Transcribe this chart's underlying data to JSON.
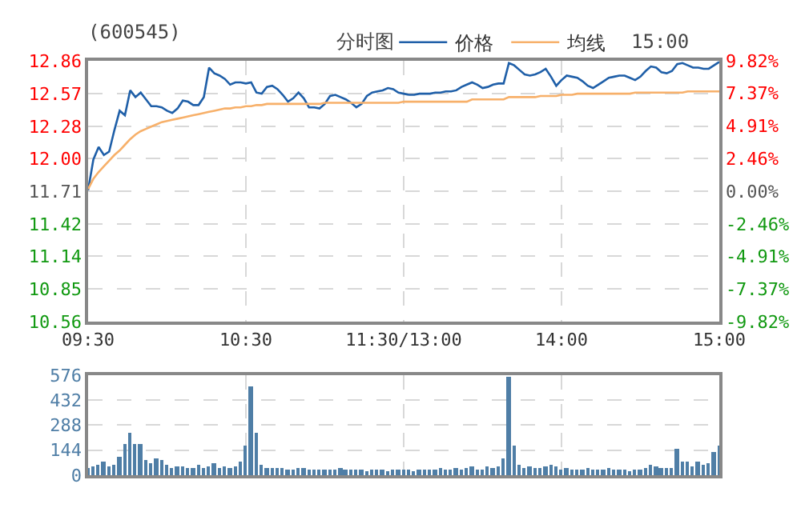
{
  "chart_data": [
    {
      "type": "line",
      "title": "(600545)",
      "annotations": [
        "分时图",
        "15:00"
      ],
      "legend": "top",
      "grid": true,
      "marker": "none",
      "line_style": "solid",
      "categories": [
        "09:30",
        null,
        null,
        null,
        null,
        null,
        null,
        null,
        null,
        null,
        null,
        null,
        null,
        null,
        null,
        null,
        null,
        null,
        null,
        null,
        null,
        null,
        null,
        null,
        null,
        null,
        null,
        null,
        null,
        null,
        "10:30",
        null,
        null,
        null,
        null,
        null,
        null,
        null,
        null,
        null,
        null,
        null,
        null,
        null,
        null,
        null,
        null,
        null,
        null,
        null,
        null,
        null,
        null,
        null,
        null,
        null,
        null,
        null,
        null,
        null,
        "11:30/13:00",
        null,
        null,
        null,
        null,
        null,
        null,
        null,
        null,
        null,
        null,
        null,
        null,
        null,
        null,
        null,
        null,
        null,
        null,
        null,
        null,
        null,
        null,
        null,
        null,
        null,
        null,
        null,
        null,
        null,
        "14:00",
        null,
        null,
        null,
        null,
        null,
        null,
        null,
        null,
        null,
        null,
        null,
        null,
        null,
        null,
        null,
        null,
        null,
        null,
        null,
        null,
        null,
        null,
        null,
        null,
        null,
        null,
        null,
        null,
        null,
        "15:00"
      ],
      "ylim": [
        10.56,
        12.86
      ],
      "yticks": [
        10.56,
        10.85,
        11.14,
        11.42,
        11.71,
        {
          "value": 12.0,
          "label": "12.00"
        },
        12.28,
        12.57,
        12.86
      ],
      "y2lim": [
        -9.82,
        9.82
      ],
      "y2ticks": [
        {
          "value": -9.82,
          "label": "-9.82%"
        },
        {
          "value": -7.37,
          "label": "-7.37%"
        },
        {
          "value": -4.91,
          "label": "-4.91%"
        },
        {
          "value": -2.46,
          "label": "-2.46%"
        },
        {
          "value": 0,
          "label": "0.00%"
        },
        {
          "value": 2.46,
          "label": "2.46%"
        },
        {
          "value": 4.91,
          "label": "4.91%"
        },
        {
          "value": 7.37,
          "label": "7.37%"
        },
        {
          "value": 9.82,
          "label": "9.82%"
        }
      ],
      "series": [
        {
          "name": "价格",
          "color": "#1f5fa8",
          "values": [
            11.72,
            11.99,
            12.1,
            12.03,
            12.06,
            12.25,
            12.42,
            12.38,
            12.6,
            12.54,
            12.58,
            12.52,
            12.46,
            12.46,
            12.45,
            12.42,
            12.4,
            12.44,
            12.51,
            12.5,
            12.47,
            12.47,
            12.54,
            12.8,
            12.75,
            12.73,
            12.7,
            12.65,
            12.67,
            12.67,
            12.66,
            12.67,
            12.58,
            12.57,
            12.63,
            12.64,
            12.61,
            12.56,
            12.5,
            12.53,
            12.58,
            12.53,
            12.45,
            12.45,
            12.44,
            12.48,
            12.55,
            12.56,
            12.54,
            12.52,
            12.49,
            12.45,
            12.48,
            12.55,
            12.58,
            12.59,
            12.6,
            12.62,
            12.61,
            12.58,
            12.57,
            12.56,
            12.56,
            12.57,
            12.57,
            12.57,
            12.58,
            12.58,
            12.59,
            12.59,
            12.6,
            12.63,
            12.65,
            12.67,
            12.65,
            12.62,
            12.63,
            12.65,
            12.66,
            12.66,
            12.84,
            12.82,
            12.78,
            12.74,
            12.73,
            12.74,
            12.76,
            12.79,
            12.72,
            12.64,
            12.69,
            12.73,
            12.72,
            12.71,
            12.68,
            12.64,
            12.62,
            12.65,
            12.68,
            12.71,
            12.72,
            12.73,
            12.73,
            12.71,
            12.69,
            12.72,
            12.77,
            12.81,
            12.8,
            12.76,
            12.75,
            12.77,
            12.83,
            12.84,
            12.82,
            12.8,
            12.8,
            12.79,
            12.79,
            12.82,
            12.85
          ]
        },
        {
          "name": "均线",
          "color": "#f7b06a",
          "values": [
            11.73,
            11.82,
            11.88,
            11.93,
            11.98,
            12.03,
            12.07,
            12.12,
            12.17,
            12.21,
            12.24,
            12.26,
            12.28,
            12.3,
            12.32,
            12.33,
            12.34,
            12.35,
            12.36,
            12.37,
            12.38,
            12.39,
            12.4,
            12.41,
            12.42,
            12.43,
            12.44,
            12.44,
            12.45,
            12.45,
            12.46,
            12.46,
            12.47,
            12.47,
            12.48,
            12.48,
            12.48,
            12.48,
            12.48,
            12.48,
            12.48,
            12.48,
            12.48,
            12.48,
            12.48,
            12.49,
            12.49,
            12.49,
            12.49,
            12.49,
            12.49,
            12.49,
            12.49,
            12.49,
            12.49,
            12.49,
            12.49,
            12.49,
            12.49,
            12.49,
            12.5,
            12.5,
            12.5,
            12.5,
            12.5,
            12.5,
            12.5,
            12.5,
            12.5,
            12.5,
            12.5,
            12.5,
            12.5,
            12.52,
            12.52,
            12.52,
            12.52,
            12.52,
            12.52,
            12.52,
            12.54,
            12.54,
            12.54,
            12.54,
            12.54,
            12.54,
            12.55,
            12.55,
            12.55,
            12.55,
            12.56,
            12.56,
            12.56,
            12.57,
            12.57,
            12.57,
            12.57,
            12.57,
            12.57,
            12.57,
            12.57,
            12.57,
            12.57,
            12.57,
            12.58,
            12.58,
            12.58,
            12.58,
            12.58,
            12.58,
            12.58,
            12.58,
            12.58,
            12.58,
            12.59,
            12.59,
            12.59,
            12.59,
            12.59,
            12.59,
            12.59
          ]
        }
      ]
    },
    {
      "type": "bar",
      "tick_labels": "y",
      "grid": true,
      "categories": [
        null,
        null,
        null,
        null,
        null,
        null,
        null,
        null,
        null,
        null,
        null,
        null,
        null,
        null,
        null,
        null,
        null,
        null,
        null,
        null,
        null,
        null,
        null,
        null,
        null,
        null,
        null,
        null,
        null,
        null,
        null,
        null,
        null,
        null,
        null,
        null,
        null,
        null,
        null,
        null,
        null,
        null,
        null,
        null,
        null,
        null,
        null,
        null,
        null,
        null,
        null,
        null,
        null,
        null,
        null,
        null,
        null,
        null,
        null,
        null,
        null,
        null,
        null,
        null,
        null,
        null,
        null,
        null,
        null,
        null,
        null,
        null,
        null,
        null,
        null,
        null,
        null,
        null,
        null,
        null,
        null,
        null,
        null,
        null,
        null,
        null,
        null,
        null,
        null,
        null,
        null,
        null,
        null,
        null,
        null,
        null,
        null,
        null,
        null,
        null,
        null,
        null,
        null,
        null,
        null,
        null,
        null,
        null,
        null,
        null,
        null,
        null,
        null,
        null,
        null,
        null,
        null,
        null,
        null,
        null,
        null
      ],
      "ylim": [
        0,
        576
      ],
      "yticks": [
        0,
        144,
        288,
        432,
        576
      ],
      "series": [
        {
          "color": "#4f7ea6",
          "values": [
            40,
            50,
            60,
            80,
            50,
            60,
            110,
            180,
            240,
            180,
            180,
            90,
            70,
            100,
            90,
            60,
            40,
            50,
            50,
            40,
            40,
            60,
            40,
            50,
            70,
            40,
            50,
            40,
            50,
            80,
            170,
            510,
            240,
            60,
            40,
            40,
            40,
            40,
            30,
            30,
            40,
            40,
            30,
            30,
            30,
            30,
            30,
            30,
            40,
            30,
            30,
            30,
            30,
            20,
            30,
            30,
            30,
            20,
            30,
            30,
            30,
            30,
            20,
            30,
            30,
            30,
            30,
            40,
            30,
            30,
            40,
            30,
            40,
            50,
            30,
            30,
            50,
            40,
            50,
            100,
            570,
            170,
            60,
            40,
            50,
            40,
            40,
            50,
            60,
            50,
            30,
            40,
            30,
            30,
            30,
            40,
            30,
            30,
            30,
            40,
            30,
            30,
            30,
            20,
            30,
            30,
            40,
            60,
            50,
            40,
            40,
            40,
            150,
            80,
            80,
            50,
            80,
            60,
            70,
            130,
            170
          ]
        }
      ]
    }
  ]
}
